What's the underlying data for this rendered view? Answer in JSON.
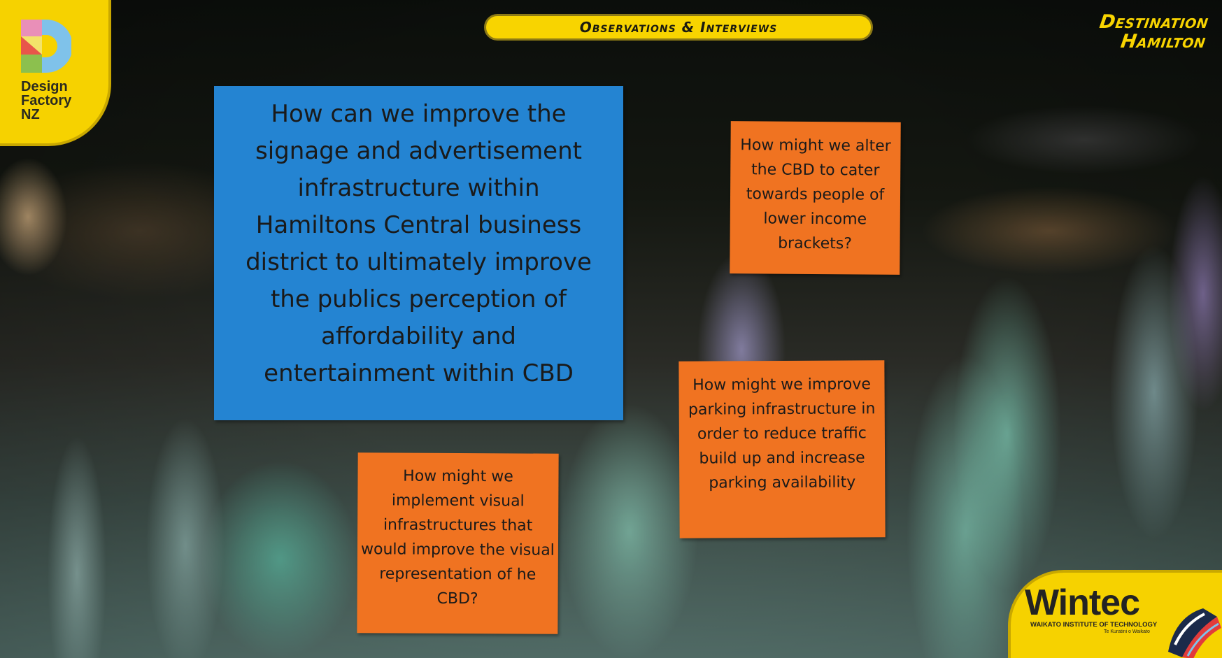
{
  "header": {
    "title": "Observations & Interviews",
    "brand_right": [
      "Destination",
      "Hamilton"
    ]
  },
  "logos": {
    "design_factory": [
      "Design",
      "Factory",
      "NZ"
    ],
    "wintec": {
      "name": "Wintec",
      "subtitle": "WAIKATO INSTITUTE OF TECHNOLOGY",
      "tagline": "Te Kuratini o Waikato"
    }
  },
  "notes": {
    "main": "How can we improve the signage and advertisement infrastructure within Hamiltons Central business district to ultimately improve the publics perception of affordability and entertainment within CBD",
    "cbd_income": "How might we alter the CBD to cater towards people of lower income brackets?",
    "parking": "How might we improve parking infrastructure in order to reduce traffic build up and increase parking availability",
    "visual": "How might we implement visual infrastructures that would improve the visual representation of he CBD?"
  },
  "colors": {
    "accent_yellow": "#f8d400",
    "note_blue": "#2484d2",
    "note_orange": "#f07321"
  }
}
